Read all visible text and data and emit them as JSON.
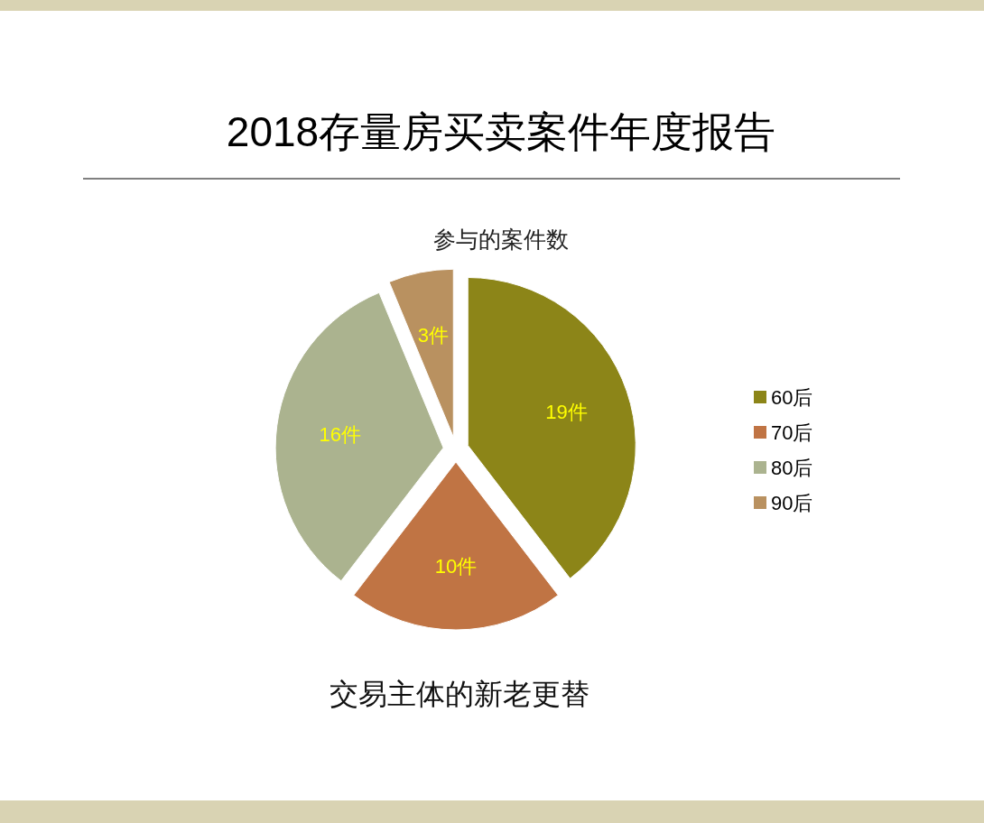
{
  "chart_data": {
    "type": "pie",
    "title": "2018存量房买卖案件年度报告",
    "subtitle": "参与的案件数",
    "categories": [
      "60后",
      "70后",
      "80后",
      "90后"
    ],
    "values": [
      19,
      10,
      16,
      3
    ],
    "colors": [
      "#8c8518",
      "#c07444",
      "#abb38f",
      "#b99160"
    ],
    "value_labels": [
      "19件",
      "10件",
      "16件",
      "3件"
    ],
    "legend": "right",
    "annotations": [
      "交易主体的新老更替"
    ]
  }
}
